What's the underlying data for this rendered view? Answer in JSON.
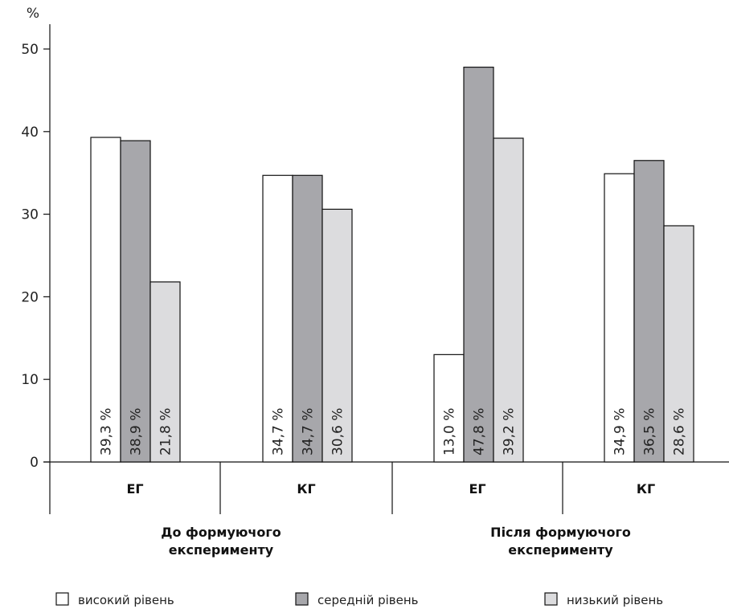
{
  "chart_data": {
    "type": "bar",
    "ylabel": "%",
    "ylim": [
      0,
      53
    ],
    "yticks": [
      0,
      10,
      20,
      30,
      40,
      50
    ],
    "phases": [
      "До формуючого експерименту",
      "Після формуючого експерименту"
    ],
    "categories": [
      "ЕГ",
      "КГ",
      "ЕГ",
      "КГ"
    ],
    "series": [
      {
        "name": "високий рівень",
        "color": "#ffffff",
        "values": [
          39.3,
          34.7,
          13.0,
          34.9
        ],
        "labels": [
          "39,3 %",
          "34,7 %",
          "13,0 %",
          "34,9 %"
        ]
      },
      {
        "name": "середній рівень",
        "color": "#a7a7ab",
        "values": [
          38.9,
          34.7,
          47.8,
          36.5
        ],
        "labels": [
          "38,9 %",
          "34,7 %",
          "47,8 %",
          "36,5 %"
        ]
      },
      {
        "name": "низький рівень",
        "color": "#dcdcde",
        "values": [
          21.8,
          30.6,
          39.2,
          28.6
        ],
        "labels": [
          "21,8 %",
          "30,6 %",
          "39,2 %",
          "28,6 %"
        ]
      }
    ],
    "legend": "bottom",
    "grid": false
  }
}
